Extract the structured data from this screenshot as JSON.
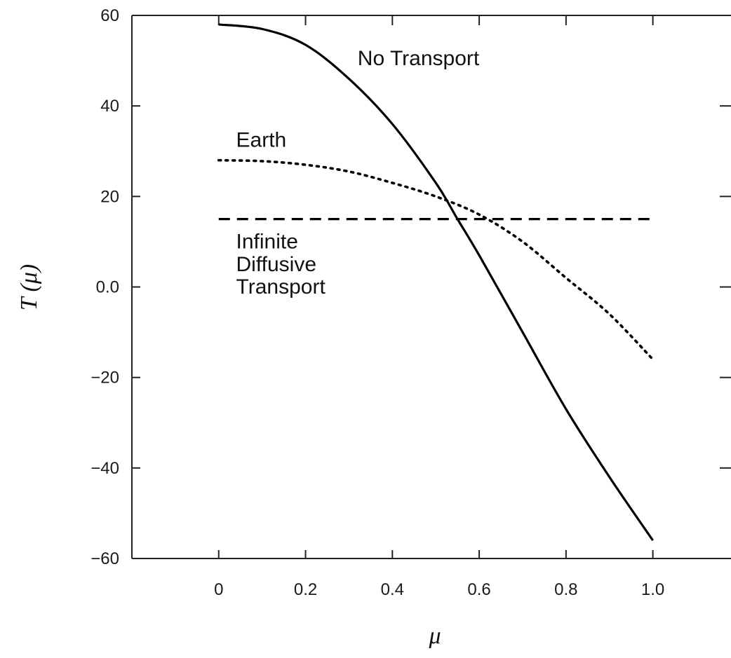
{
  "chart_data": {
    "type": "line",
    "title": "",
    "xlabel": "μ",
    "ylabel": "T (μ)",
    "xlim": [
      -0.2,
      1.18
    ],
    "ylim": [
      -60,
      60
    ],
    "x_ticks": [
      0,
      0.2,
      0.4,
      0.6,
      0.8,
      1.0
    ],
    "x_tick_labels": [
      "0",
      "0.2",
      "0.4",
      "0.6",
      "0.8",
      "1.0"
    ],
    "y_ticks": [
      60,
      40,
      20,
      0,
      -20,
      -40,
      -60
    ],
    "y_tick_labels": [
      "60",
      "40",
      "20",
      "0.0",
      "−20",
      "−40",
      "−60"
    ],
    "grid": false,
    "legend": "none (series labelled inline)",
    "series": [
      {
        "name": "No Transport",
        "style": "solid",
        "color": "#000000",
        "x": [
          0,
          0.1,
          0.2,
          0.3,
          0.4,
          0.5,
          0.55,
          0.6,
          0.7,
          0.8,
          0.9,
          1.0
        ],
        "y": [
          58,
          57,
          53.5,
          46,
          36,
          23,
          15,
          7,
          -10,
          -27,
          -42,
          -56
        ]
      },
      {
        "name": "Earth",
        "style": "dotted",
        "color": "#000000",
        "x": [
          0,
          0.1,
          0.2,
          0.3,
          0.4,
          0.5,
          0.6,
          0.7,
          0.8,
          0.9,
          1.0
        ],
        "y": [
          28,
          27.8,
          27,
          25.5,
          23,
          20,
          16,
          10,
          2,
          -6,
          -16
        ]
      },
      {
        "name": "Infinite Diffusive Transport",
        "style": "dashed",
        "color": "#000000",
        "x": [
          0,
          1.0
        ],
        "y": [
          15,
          15
        ]
      }
    ],
    "annotations": [
      {
        "text": "No Transport",
        "x": 0.32,
        "y": 49
      },
      {
        "text": "Earth",
        "x": 0.04,
        "y": 31
      },
      {
        "text": "Infinite",
        "x": 0.04,
        "y": 8.5
      },
      {
        "text": "Diffusive",
        "x": 0.04,
        "y": 3.5
      },
      {
        "text": "Transport",
        "x": 0.04,
        "y": -1.5
      }
    ]
  }
}
